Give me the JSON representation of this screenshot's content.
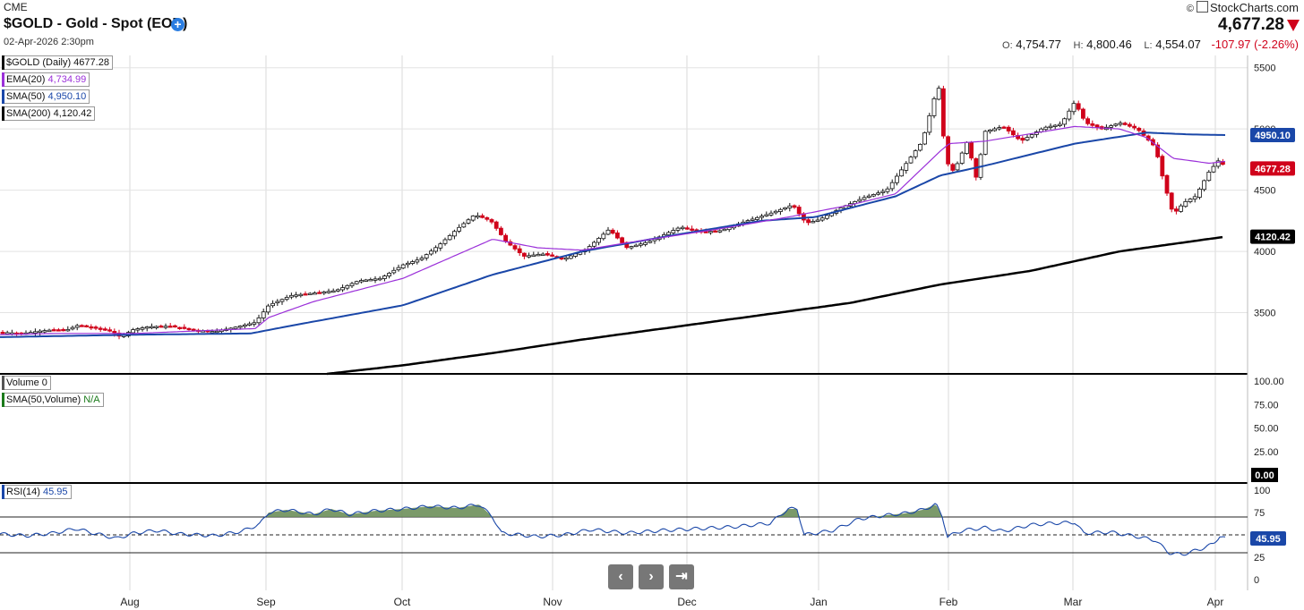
{
  "header": {
    "exchange": "CME",
    "title": "$GOLD - Gold - Spot (EOD)",
    "datetime": "02-Apr-2026 2:30pm",
    "brand": "StockCharts.com",
    "last": "4,677.28",
    "open_label": "O:",
    "open": "4,754.77",
    "high_label": "H:",
    "high": "4,800.46",
    "low_label": "L:",
    "low": "4,554.07",
    "change": "-107.97 (-2.26%)",
    "down_color": "#d0021b",
    "up_color": "#111111"
  },
  "legends": {
    "price": "$GOLD (Daily) 4677.28",
    "ema_label": "EMA(20)",
    "ema_value": "4,734.99",
    "sma50_label": "SMA(50)",
    "sma50_value": "4,950.10",
    "sma200_label": "SMA(200)",
    "sma200_value": "4,120.42",
    "volume": "Volume 0",
    "vol_sma_label": "SMA(50,Volume)",
    "vol_sma_value": "N/A",
    "rsi_label": "RSI(14)",
    "rsi_value": "45.95"
  },
  "nav": {
    "prev_icon": "chevron-left-icon",
    "next_icon": "chevron-right-icon",
    "end_icon": "skip-to-end-icon"
  },
  "chart_data": [
    {
      "type": "candlestick",
      "title": "$GOLD - Gold - Spot (EOD)",
      "ylim": [
        3000,
        5600
      ],
      "y_ticks": [
        3500,
        4000,
        4500,
        5000,
        5500
      ],
      "x_ticks": [
        "Aug",
        "Sep",
        "Oct",
        "Nov",
        "Dec",
        "Jan",
        "Feb",
        "Mar",
        "Apr"
      ],
      "grid": true,
      "price_keyframes": [
        [
          0,
          3340
        ],
        [
          25,
          3330
        ],
        [
          45,
          3350
        ],
        [
          60,
          3360
        ],
        [
          75,
          3360
        ],
        [
          88,
          3400
        ],
        [
          100,
          3380
        ],
        [
          120,
          3360
        ],
        [
          135,
          3300
        ],
        [
          148,
          3360
        ],
        [
          165,
          3385
        ],
        [
          190,
          3390
        ],
        [
          215,
          3360
        ],
        [
          240,
          3345
        ],
        [
          262,
          3380
        ],
        [
          285,
          3420
        ],
        [
          300,
          3560
        ],
        [
          325,
          3640
        ],
        [
          350,
          3660
        ],
        [
          375,
          3680
        ],
        [
          400,
          3760
        ],
        [
          425,
          3780
        ],
        [
          450,
          3890
        ],
        [
          470,
          3940
        ],
        [
          490,
          4050
        ],
        [
          510,
          4180
        ],
        [
          530,
          4300
        ],
        [
          548,
          4250
        ],
        [
          565,
          4080
        ],
        [
          585,
          3960
        ],
        [
          605,
          3980
        ],
        [
          630,
          3940
        ],
        [
          655,
          4020
        ],
        [
          680,
          4180
        ],
        [
          700,
          4030
        ],
        [
          725,
          4080
        ],
        [
          760,
          4200
        ],
        [
          785,
          4160
        ],
        [
          805,
          4170
        ],
        [
          830,
          4240
        ],
        [
          860,
          4310
        ],
        [
          885,
          4380
        ],
        [
          900,
          4230
        ],
        [
          915,
          4260
        ],
        [
          940,
          4360
        ],
        [
          965,
          4440
        ],
        [
          990,
          4500
        ],
        [
          1010,
          4700
        ],
        [
          1030,
          4900
        ],
        [
          1045,
          5300
        ],
        [
          1050,
          5350
        ],
        [
          1055,
          4750
        ],
        [
          1065,
          4650
        ],
        [
          1080,
          4900
        ],
        [
          1090,
          4600
        ],
        [
          1100,
          4980
        ],
        [
          1120,
          5020
        ],
        [
          1140,
          4900
        ],
        [
          1165,
          5010
        ],
        [
          1185,
          5040
        ],
        [
          1200,
          5220
        ],
        [
          1212,
          5050
        ],
        [
          1230,
          5000
        ],
        [
          1250,
          5050
        ],
        [
          1270,
          5000
        ],
        [
          1290,
          4850
        ],
        [
          1300,
          4550
        ],
        [
          1310,
          4300
        ],
        [
          1322,
          4400
        ],
        [
          1335,
          4450
        ],
        [
          1350,
          4650
        ],
        [
          1362,
          4755
        ],
        [
          1368,
          4677
        ]
      ],
      "ema20": {
        "name": "EMA(20)",
        "last": 4734.99,
        "color": "#9b30d9",
        "keyframes": [
          [
            0,
            3320
          ],
          [
            60,
            3330
          ],
          [
            150,
            3330
          ],
          [
            285,
            3370
          ],
          [
            300,
            3460
          ],
          [
            350,
            3590
          ],
          [
            450,
            3780
          ],
          [
            550,
            4100
          ],
          [
            600,
            4030
          ],
          [
            650,
            4010
          ],
          [
            700,
            4070
          ],
          [
            800,
            4180
          ],
          [
            880,
            4280
          ],
          [
            950,
            4380
          ],
          [
            1000,
            4470
          ],
          [
            1050,
            4820
          ],
          [
            1060,
            4880
          ],
          [
            1100,
            4900
          ],
          [
            1200,
            5020
          ],
          [
            1250,
            5000
          ],
          [
            1280,
            4930
          ],
          [
            1310,
            4760
          ],
          [
            1350,
            4720
          ],
          [
            1368,
            4735
          ]
        ]
      },
      "sma50": {
        "name": "SMA(50)",
        "last": 4950.1,
        "color": "#1a47a8",
        "keyframes": [
          [
            0,
            3300
          ],
          [
            150,
            3320
          ],
          [
            280,
            3330
          ],
          [
            330,
            3400
          ],
          [
            450,
            3560
          ],
          [
            550,
            3810
          ],
          [
            650,
            4000
          ],
          [
            750,
            4130
          ],
          [
            850,
            4250
          ],
          [
            910,
            4280
          ],
          [
            1000,
            4450
          ],
          [
            1050,
            4620
          ],
          [
            1100,
            4700
          ],
          [
            1200,
            4880
          ],
          [
            1280,
            4970
          ],
          [
            1330,
            4955
          ],
          [
            1368,
            4950
          ]
        ]
      },
      "sma200": {
        "name": "SMA(200)",
        "last": 4120.42,
        "color": "#000000",
        "keyframes": [
          [
            365,
            3000
          ],
          [
            450,
            3070
          ],
          [
            550,
            3170
          ],
          [
            650,
            3280
          ],
          [
            750,
            3380
          ],
          [
            850,
            3480
          ],
          [
            950,
            3580
          ],
          [
            1050,
            3730
          ],
          [
            1150,
            3840
          ],
          [
            1250,
            4000
          ],
          [
            1368,
            4120
          ]
        ]
      },
      "last_labels": [
        {
          "value": "4950.10",
          "y": 4950.1,
          "color": "#1a47a8"
        },
        {
          "value": "4677.28",
          "y": 4677.28,
          "color": "#d0021b"
        },
        {
          "value": "4120.42",
          "y": 4120.42,
          "color": "#000000"
        }
      ]
    },
    {
      "type": "bar",
      "title": "Volume",
      "ylim": [
        0,
        100
      ],
      "y_ticks": [
        "100.00",
        "75.00",
        "50.00",
        "25.00",
        "0.00"
      ],
      "values": []
    },
    {
      "type": "line",
      "title": "RSI(14)",
      "ylim": [
        0,
        100
      ],
      "y_ticks": [
        100,
        75,
        50,
        25,
        0
      ],
      "reference_lines": [
        70,
        50,
        30
      ],
      "last": "45.95",
      "fill_color": "#6d8f5a",
      "line_color": "#1a47a8",
      "keyframes": [
        [
          0,
          51
        ],
        [
          30,
          49
        ],
        [
          60,
          52
        ],
        [
          85,
          57
        ],
        [
          100,
          53
        ],
        [
          130,
          46
        ],
        [
          150,
          52
        ],
        [
          175,
          55
        ],
        [
          200,
          51
        ],
        [
          240,
          49
        ],
        [
          270,
          54
        ],
        [
          290,
          62
        ],
        [
          300,
          75
        ],
        [
          320,
          78
        ],
        [
          350,
          73
        ],
        [
          370,
          79
        ],
        [
          390,
          73
        ],
        [
          420,
          77
        ],
        [
          450,
          79
        ],
        [
          480,
          82
        ],
        [
          510,
          80
        ],
        [
          535,
          84
        ],
        [
          550,
          70
        ],
        [
          560,
          52
        ],
        [
          580,
          50
        ],
        [
          600,
          48
        ],
        [
          630,
          50
        ],
        [
          660,
          56
        ],
        [
          700,
          52
        ],
        [
          740,
          55
        ],
        [
          780,
          57
        ],
        [
          820,
          59
        ],
        [
          860,
          63
        ],
        [
          880,
          79
        ],
        [
          890,
          79
        ],
        [
          898,
          50
        ],
        [
          930,
          55
        ],
        [
          960,
          68
        ],
        [
          990,
          72
        ],
        [
          1010,
          74
        ],
        [
          1030,
          78
        ],
        [
          1045,
          84
        ],
        [
          1052,
          71
        ],
        [
          1058,
          48
        ],
        [
          1075,
          55
        ],
        [
          1100,
          58
        ],
        [
          1120,
          54
        ],
        [
          1150,
          61
        ],
        [
          1175,
          63
        ],
        [
          1200,
          64
        ],
        [
          1210,
          52
        ],
        [
          1240,
          53
        ],
        [
          1270,
          48
        ],
        [
          1290,
          44
        ],
        [
          1305,
          30
        ],
        [
          1320,
          28
        ],
        [
          1340,
          34
        ],
        [
          1355,
          40
        ],
        [
          1362,
          49
        ],
        [
          1368,
          46
        ]
      ]
    }
  ]
}
